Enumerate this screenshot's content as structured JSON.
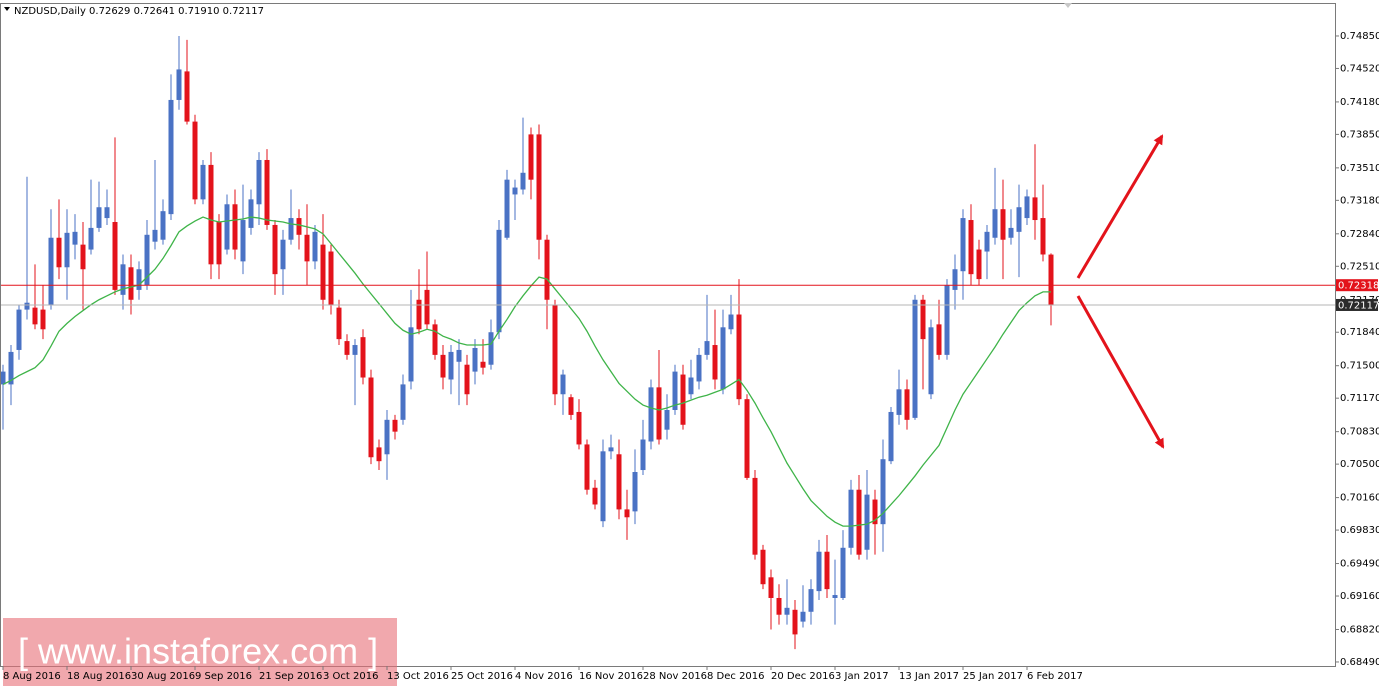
{
  "chart_data": {
    "type": "candlestick",
    "title": "NZDUSD,Daily  0.72629 0.72641 0.71910 0.72117",
    "categories": [
      "8 Aug 2016",
      null,
      null,
      null,
      null,
      null,
      null,
      null,
      "18 Aug 2016",
      null,
      null,
      null,
      null,
      null,
      null,
      null,
      "30 Aug 2016",
      null,
      null,
      null,
      null,
      null,
      null,
      null,
      "9 Sep 2016",
      null,
      null,
      null,
      null,
      null,
      null,
      null,
      "21 Sep 2016",
      null,
      null,
      null,
      null,
      null,
      null,
      null,
      "3 Oct 2016",
      null,
      null,
      null,
      null,
      null,
      null,
      null,
      "13 Oct 2016",
      null,
      null,
      null,
      null,
      null,
      null,
      null,
      "25 Oct 2016",
      null,
      null,
      null,
      null,
      null,
      null,
      null,
      "4 Nov 2016",
      null,
      null,
      null,
      null,
      null,
      null,
      null,
      "16 Nov 2016",
      null,
      null,
      null,
      null,
      null,
      null,
      null,
      "28 Nov 2016",
      null,
      null,
      null,
      null,
      null,
      null,
      null,
      "8 Dec 2016",
      null,
      null,
      null,
      null,
      null,
      null,
      null,
      "20 Dec 2016",
      null,
      null,
      null,
      null,
      null,
      null,
      null,
      "3 Jan 2017",
      null,
      null,
      null,
      null,
      null,
      null,
      null,
      "13 Jan 2017",
      null,
      null,
      null,
      null,
      null,
      null,
      null,
      "25 Jan 2017",
      null,
      null,
      null,
      null,
      null,
      null,
      null,
      "6 Feb 2017",
      null,
      null,
      null
    ],
    "open": [
      0.7131,
      0.7131,
      0.7166,
      0.7207,
      0.7209,
      0.7207,
      0.7212,
      0.728,
      0.725,
      0.7273,
      0.7273,
      0.7268,
      0.729,
      0.73,
      0.7296,
      0.7222,
      0.725,
      0.7227,
      0.7232,
      0.7276,
      0.7278,
      0.7304,
      0.742,
      0.7449,
      0.7398,
      0.7319,
      0.7354,
      0.7296,
      0.7268,
      0.7314,
      0.7256,
      0.729,
      0.7314,
      0.7359,
      0.7293,
      0.7248,
      0.7278,
      0.73,
      0.7283,
      0.7256,
      0.7273,
      0.7266,
      0.7209,
      0.7175,
      0.7161,
      0.7179,
      0.7138,
      0.7067,
      0.706,
      0.7095,
      0.7095,
      0.7134,
      0.7217,
      0.7227,
      0.7192,
      0.7161,
      0.7136,
      0.7154,
      0.7151,
      0.7144,
      0.7154,
      0.7151,
      0.7184,
      0.728,
      0.7324,
      0.7329,
      0.7385,
      0.7385,
      0.7278,
      0.7212,
      0.7121,
      0.7118,
      0.7103,
      0.707,
      0.7026,
      0.6992,
      0.7063,
      0.706,
      0.7004,
      0.7002,
      0.7044,
      0.7073,
      0.7128,
      0.7085,
      0.7105,
      0.7141,
      0.7121,
      0.7134,
      0.7161,
      0.7171,
      0.7126,
      0.7187,
      0.7202,
      0.7116,
      0.7036,
      0.6963,
      0.6935,
      0.6914,
      0.6897,
      0.6902,
      0.689,
      0.69,
      0.6921,
      0.6961,
      0.6914,
      0.6914,
      0.6965,
      0.7024,
      0.6963,
      0.7014,
      0.6989,
      0.7053,
      0.71,
      0.7126,
      0.7097,
      0.7217,
      0.7121,
      0.7192,
      0.7161,
      0.7227,
      0.7246,
      0.7298,
      0.7268,
      0.7266,
      0.728,
      0.7309,
      0.728,
      0.7286,
      0.73,
      0.7321,
      0.73,
      0.72629
    ],
    "high": [
      0.7151,
      0.7171,
      0.7212,
      0.7342,
      0.7253,
      0.7232,
      0.7309,
      0.7319,
      0.7309,
      0.7304,
      0.7296,
      0.7339,
      0.7337,
      0.7329,
      0.7382,
      0.7263,
      0.7263,
      0.7256,
      0.7298,
      0.7359,
      0.7319,
      0.7446,
      0.7485,
      0.7481,
      0.7405,
      0.7359,
      0.7367,
      0.7304,
      0.7324,
      0.7329,
      0.7334,
      0.7329,
      0.7367,
      0.737,
      0.7298,
      0.7288,
      0.7329,
      0.7309,
      0.7314,
      0.7293,
      0.7304,
      0.7273,
      0.7217,
      0.7182,
      0.7177,
      0.7187,
      0.7146,
      0.7075,
      0.7105,
      0.71,
      0.7141,
      0.7227,
      0.7248,
      0.7266,
      0.7197,
      0.7171,
      0.7171,
      0.7177,
      0.7161,
      0.7177,
      0.7177,
      0.7197,
      0.7298,
      0.7349,
      0.7339,
      0.7402,
      0.7392,
      0.7395,
      0.7283,
      0.7217,
      0.7146,
      0.7121,
      0.7116,
      0.7075,
      0.7034,
      0.7075,
      0.708,
      0.7075,
      0.7024,
      0.7065,
      0.7095,
      0.7136,
      0.7166,
      0.7121,
      0.7151,
      0.7151,
      0.7156,
      0.7168,
      0.7222,
      0.7207,
      0.7207,
      0.7222,
      0.7238,
      0.7121,
      0.7044,
      0.6968,
      0.6943,
      0.6928,
      0.6933,
      0.6912,
      0.6927,
      0.6933,
      0.6973,
      0.6978,
      0.6953,
      0.6983,
      0.7034,
      0.7039,
      0.7044,
      0.7024,
      0.7075,
      0.7108,
      0.7146,
      0.7136,
      0.7222,
      0.7222,
      0.7197,
      0.7217,
      0.7238,
      0.7263,
      0.7309,
      0.7314,
      0.7278,
      0.7293,
      0.7351,
      0.7339,
      0.7309,
      0.7334,
      0.7329,
      0.7375,
      0.7334,
      0.72641
    ],
    "low": [
      0.7085,
      0.711,
      0.7156,
      0.7197,
      0.7187,
      0.7177,
      0.7207,
      0.7238,
      0.7217,
      0.7258,
      0.7207,
      0.7263,
      0.7286,
      0.7293,
      0.7222,
      0.7207,
      0.7202,
      0.7217,
      0.7227,
      0.7268,
      0.7273,
      0.7298,
      0.741,
      0.7395,
      0.7314,
      0.7314,
      0.7238,
      0.7238,
      0.7263,
      0.7258,
      0.7243,
      0.7283,
      0.7293,
      0.7288,
      0.7222,
      0.7222,
      0.7273,
      0.7268,
      0.7232,
      0.7248,
      0.7207,
      0.7202,
      0.7171,
      0.7156,
      0.711,
      0.7131,
      0.705,
      0.7044,
      0.7034,
      0.7075,
      0.709,
      0.7126,
      0.7182,
      0.7187,
      0.7156,
      0.7126,
      0.7121,
      0.711,
      0.711,
      0.7131,
      0.7141,
      0.7146,
      0.7177,
      0.7278,
      0.7298,
      0.7324,
      0.7319,
      0.7258,
      0.7187,
      0.711,
      0.71,
      0.7095,
      0.7065,
      0.7019,
      0.7004,
      0.6986,
      0.7055,
      0.6994,
      0.6973,
      0.6989,
      0.7039,
      0.7065,
      0.707,
      0.7075,
      0.71,
      0.7085,
      0.7116,
      0.7126,
      0.7156,
      0.7126,
      0.7121,
      0.7182,
      0.711,
      0.7034,
      0.6953,
      0.6923,
      0.6882,
      0.6887,
      0.6887,
      0.6862,
      0.6884,
      0.6887,
      0.6912,
      0.6914,
      0.6887,
      0.6912,
      0.6958,
      0.6953,
      0.6953,
      0.6958,
      0.6961,
      0.705,
      0.709,
      0.7085,
      0.7095,
      0.7126,
      0.7116,
      0.7156,
      0.7156,
      0.7207,
      0.7217,
      0.7232,
      0.7232,
      0.7238,
      0.7273,
      0.7238,
      0.7273,
      0.724,
      0.7293,
      0.7278,
      0.7256,
      0.7191
    ],
    "close": [
      0.7144,
      0.7164,
      0.7207,
      0.7214,
      0.7192,
      0.7187,
      0.728,
      0.725,
      0.7285,
      0.7286,
      0.7248,
      0.729,
      0.7311,
      0.7311,
      0.7227,
      0.7253,
      0.7217,
      0.7248,
      0.7283,
      0.7288,
      0.7307,
      0.742,
      0.7451,
      0.7398,
      0.7319,
      0.7354,
      0.7253,
      0.7253,
      0.7314,
      0.7268,
      0.7298,
      0.7319,
      0.7359,
      0.7293,
      0.7243,
      0.7278,
      0.73,
      0.7283,
      0.7256,
      0.7286,
      0.7217,
      0.7212,
      0.7177,
      0.7161,
      0.7171,
      0.7138,
      0.7057,
      0.7053,
      0.7095,
      0.7083,
      0.7131,
      0.7189,
      0.7187,
      0.7192,
      0.7161,
      0.7138,
      0.7164,
      0.7166,
      0.7121,
      0.7168,
      0.7148,
      0.7184,
      0.7288,
      0.7339,
      0.7331,
      0.7346,
      0.7339,
      0.7278,
      0.7217,
      0.7121,
      0.7141,
      0.71,
      0.707,
      0.7024,
      0.7009,
      0.7063,
      0.7067,
      0.7004,
      0.6996,
      0.7042,
      0.7075,
      0.7128,
      0.7075,
      0.7105,
      0.7144,
      0.709,
      0.7138,
      0.7161,
      0.7175,
      0.7136,
      0.7189,
      0.7202,
      0.7116,
      0.7036,
      0.6958,
      0.6928,
      0.6914,
      0.6897,
      0.6904,
      0.6877,
      0.69,
      0.6923,
      0.6961,
      0.6923,
      0.6917,
      0.6965,
      0.7024,
      0.6958,
      0.7019,
      0.6989,
      0.7055,
      0.7103,
      0.7126,
      0.7095,
      0.7217,
      0.7177,
      0.7189,
      0.7161,
      0.7232,
      0.7248,
      0.73,
      0.7243,
      0.7238,
      0.7286,
      0.7309,
      0.7278,
      0.729,
      0.7311,
      0.7322,
      0.7298,
      0.7263,
      0.72117
    ],
    "up_color": "#4a72c4",
    "down_color": "#e3131b",
    "ma": {
      "color": "#3fb449",
      "values": [
        0.7131,
        0.7135,
        0.714,
        0.7144,
        0.7148,
        0.7156,
        0.717,
        0.7185,
        0.7193,
        0.72,
        0.7206,
        0.7212,
        0.7217,
        0.7221,
        0.7225,
        0.7228,
        0.723,
        0.7232,
        0.724,
        0.7248,
        0.7259,
        0.7272,
        0.7286,
        0.7292,
        0.7297,
        0.7301,
        0.7298,
        0.7296,
        0.7297,
        0.7298,
        0.7299,
        0.7301,
        0.73,
        0.7298,
        0.7297,
        0.7296,
        0.7294,
        0.7293,
        0.7291,
        0.7289,
        0.7284,
        0.7274,
        0.7264,
        0.7254,
        0.7244,
        0.7233,
        0.7223,
        0.7213,
        0.7203,
        0.7193,
        0.7186,
        0.7182,
        0.7184,
        0.7187,
        0.7185,
        0.718,
        0.7177,
        0.7173,
        0.7171,
        0.7171,
        0.7171,
        0.7172,
        0.7185,
        0.7197,
        0.721,
        0.7221,
        0.7231,
        0.724,
        0.7238,
        0.7228,
        0.7218,
        0.7208,
        0.7198,
        0.7185,
        0.717,
        0.7156,
        0.7144,
        0.7132,
        0.7124,
        0.7116,
        0.711,
        0.7107,
        0.7105,
        0.7107,
        0.711,
        0.7112,
        0.7115,
        0.7118,
        0.712,
        0.7123,
        0.7126,
        0.7131,
        0.7136,
        0.7125,
        0.7112,
        0.7097,
        0.7083,
        0.7067,
        0.7051,
        0.7038,
        0.7025,
        0.7013,
        0.7005,
        0.6997,
        0.6991,
        0.6987,
        0.6987,
        0.6988,
        0.6989,
        0.6993,
        0.7,
        0.7009,
        0.7018,
        0.7028,
        0.7038,
        0.7049,
        0.7059,
        0.7069,
        0.7087,
        0.7105,
        0.7121,
        0.7133,
        0.7145,
        0.7157,
        0.7169,
        0.7182,
        0.7194,
        0.7206,
        0.7214,
        0.7221,
        0.7225,
        0.7225
      ]
    },
    "hlines": [
      {
        "value": 0.72318,
        "color": "#e3131b"
      },
      {
        "value": 0.72117,
        "color": "#b4b4b4"
      }
    ],
    "ylim": [
      0.68449,
      0.75185
    ],
    "yticks": [
      {
        "value": 0.7485,
        "label": "0.74850"
      },
      {
        "value": 0.7452,
        "label": "0.74520"
      },
      {
        "value": 0.7418,
        "label": "0.74180"
      },
      {
        "value": 0.7385,
        "label": "0.73850"
      },
      {
        "value": 0.7351,
        "label": "0.73510"
      },
      {
        "value": 0.7318,
        "label": "0.73180"
      },
      {
        "value": 0.7284,
        "label": "0.72840"
      },
      {
        "value": 0.7251,
        "label": "0.72510"
      },
      {
        "value": 0.7217,
        "label": "0.72170"
      },
      {
        "value": 0.7184,
        "label": "0.71840"
      },
      {
        "value": 0.715,
        "label": "0.71500"
      },
      {
        "value": 0.7117,
        "label": "0.71170"
      },
      {
        "value": 0.7083,
        "label": "0.70830"
      },
      {
        "value": 0.705,
        "label": "0.70500"
      },
      {
        "value": 0.7016,
        "label": "0.70160"
      },
      {
        "value": 0.6983,
        "label": "0.69830"
      },
      {
        "value": 0.6949,
        "label": "0.69490"
      },
      {
        "value": 0.6916,
        "label": "0.69160"
      },
      {
        "value": 0.6882,
        "label": "0.68820"
      },
      {
        "value": 0.6849,
        "label": "0.68490"
      }
    ]
  },
  "watermark": "[ www.instaforex.com ]"
}
